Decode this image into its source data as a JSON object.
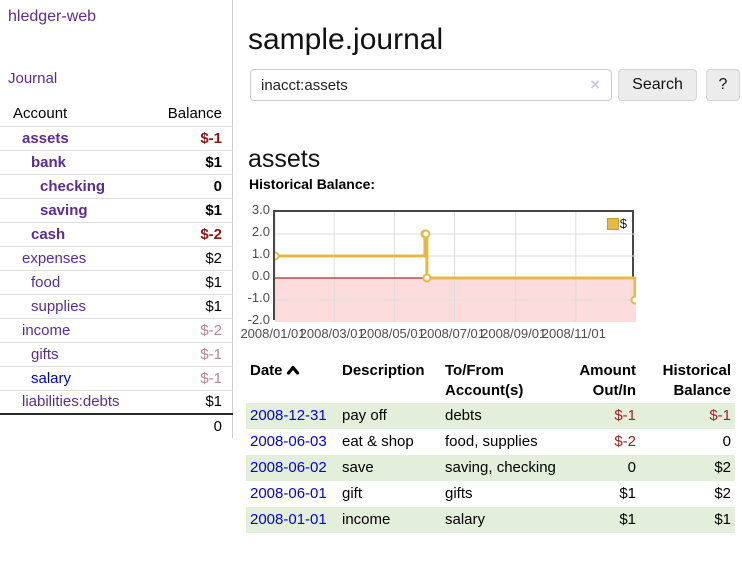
{
  "app": {
    "title": "hledger-web"
  },
  "sidebar": {
    "journal_link": "Journal",
    "accounts_table": {
      "headers": {
        "account": "Account",
        "balance": "Balance"
      },
      "rows": [
        {
          "name": "assets",
          "balance": "$-1"
        },
        {
          "name": "bank",
          "balance": "$1"
        },
        {
          "name": "checking",
          "balance": "0"
        },
        {
          "name": "saving",
          "balance": "$1"
        },
        {
          "name": "cash",
          "balance": "$-2"
        },
        {
          "name": "expenses",
          "balance": "$2"
        },
        {
          "name": "food",
          "balance": "$1"
        },
        {
          "name": "supplies",
          "balance": "$1"
        },
        {
          "name": "income",
          "balance": "$-2"
        },
        {
          "name": "gifts",
          "balance": "$-1"
        },
        {
          "name": "salary",
          "balance": "$-1"
        },
        {
          "name": "liabilities:debts",
          "balance": "$1"
        }
      ],
      "total": "0"
    }
  },
  "main": {
    "title": "sample.journal",
    "search": {
      "value": "inacct:assets",
      "clear_icon": "×",
      "search_button": "Search",
      "help_button": "?"
    },
    "account_heading": "assets",
    "chart_title": "Historical Balance:"
  },
  "chart_data": {
    "type": "line",
    "step": true,
    "title": "Historical Balance",
    "series": [
      {
        "name": "$",
        "color": "#e6ba42",
        "points": [
          {
            "date": "2008/01/01",
            "value": 1
          },
          {
            "date": "2008/06/01",
            "value": 2
          },
          {
            "date": "2008/06/02",
            "value": 2
          },
          {
            "date": "2008/06/03",
            "value": 0
          },
          {
            "date": "2008/12/31",
            "value": -1
          }
        ]
      }
    ],
    "x_ticks": [
      "2008/01/01",
      "2008/03/01",
      "2008/05/01",
      "2008/07/01",
      "2008/09/01",
      "2008/11/01"
    ],
    "y_ticks": [
      "3.0",
      "2.0",
      "1.0",
      "0.0",
      "-1.0",
      "-2.0"
    ],
    "ylim": [
      -2,
      3
    ],
    "xlim": [
      "2008/01/01",
      "2009/01/01"
    ],
    "grid": true,
    "legend_position": "top-right",
    "negative_fill": "#fcdcdc",
    "zero_line_color": "#8b0000"
  },
  "register": {
    "headers": {
      "date": "Date",
      "description": "Description",
      "accounts": "To/From Account(s)",
      "amount": "Amount Out/In",
      "balance": "Historical Balance"
    },
    "rows": [
      {
        "date": "2008-12-31",
        "description": "pay off",
        "accounts": "debts",
        "amount": "$-1",
        "balance": "$-1"
      },
      {
        "date": "2008-06-03",
        "description": "eat & shop",
        "accounts": "food, supplies",
        "amount": "$-2",
        "balance": "0"
      },
      {
        "date": "2008-06-02",
        "description": "save",
        "accounts": "saving, checking",
        "amount": "0",
        "balance": "$2"
      },
      {
        "date": "2008-06-01",
        "description": "gift",
        "accounts": "gifts",
        "amount": "$1",
        "balance": "$2"
      },
      {
        "date": "2008-01-01",
        "description": "income",
        "accounts": "salary",
        "amount": "$1",
        "balance": "$1"
      }
    ]
  },
  "colors": {
    "accent_purple": "#5c2d91",
    "link_blue": "#0000e0",
    "negative_dark": "#8b1515",
    "negative_light": "#c2818e",
    "negative": "#9c2323",
    "row_green": "#e3efdb",
    "series_gold": "#e6ba42"
  }
}
